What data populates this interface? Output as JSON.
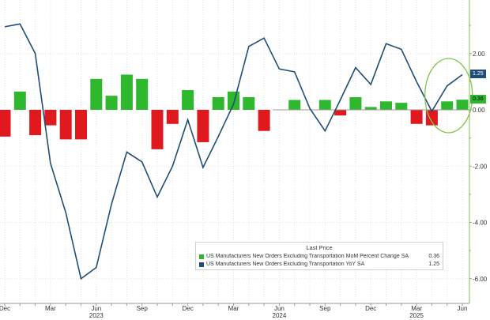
{
  "chart_data": {
    "type": "bar+line",
    "y_axis": {
      "position": "right",
      "ticks": [
        "2.00",
        "0.00",
        "-2.00",
        "-4.00",
        "-6.00"
      ],
      "tick_values": [
        2,
        0,
        -2,
        -4,
        -6
      ],
      "range": [
        -6.4,
        3.9
      ]
    },
    "x_axis": {
      "month_labels": [
        "Dec",
        "Mar",
        "Jun",
        "Sep",
        "Dec",
        "Mar",
        "Jun",
        "Sep",
        "Dec",
        "Mar",
        "Jun"
      ],
      "month_label_indices": [
        0,
        3,
        6,
        9,
        12,
        15,
        18,
        21,
        24,
        27,
        30
      ],
      "year_labels": [
        "2023",
        "2024",
        "2025"
      ],
      "year_label_indices": [
        6,
        18,
        27
      ]
    },
    "categories": [
      "Dec 2022",
      "Jan 2023",
      "Feb 2023",
      "Mar 2023",
      "Apr 2023",
      "May 2023",
      "Jun 2023",
      "Jul 2023",
      "Aug 2023",
      "Sep 2023",
      "Oct 2023",
      "Nov 2023",
      "Dec 2023",
      "Jan 2024",
      "Feb 2024",
      "Mar 2024",
      "Apr 2024",
      "May 2024",
      "Jun 2024",
      "Jul 2024",
      "Aug 2024",
      "Sep 2024",
      "Oct 2024",
      "Nov 2024",
      "Dec 2024",
      "Jan 2025",
      "Feb 2025",
      "Mar 2025",
      "Apr 2025",
      "May 2025",
      "Jun 2025"
    ],
    "series": [
      {
        "name": "US Manufacturers New Orders Excluding Transportation MoM Percent Change SA",
        "kind": "bar",
        "positive_color": "#2db82d",
        "negative_color": "#e0191e",
        "values": [
          -0.95,
          0.65,
          -0.9,
          -0.55,
          -1.05,
          -1.05,
          1.1,
          0.5,
          1.25,
          1.1,
          -1.4,
          -0.5,
          0.7,
          -1.15,
          0.45,
          0.65,
          0.45,
          -0.75,
          0.0,
          0.35,
          0.0,
          0.35,
          -0.2,
          0.45,
          0.1,
          0.3,
          0.25,
          -0.5,
          -0.55,
          0.3,
          0.36
        ],
        "last_price": "0.36"
      },
      {
        "name": "US Manufacturers New Orders Excluding Transportation YoY SA",
        "kind": "line",
        "color": "#1f4e79",
        "values": [
          2.95,
          3.05,
          2.0,
          -1.9,
          -3.65,
          -6.0,
          -5.6,
          -3.35,
          -1.5,
          -1.85,
          -3.1,
          -2.0,
          -0.35,
          -2.05,
          -0.95,
          0.2,
          2.25,
          2.55,
          1.45,
          1.35,
          0.05,
          -0.75,
          0.35,
          1.5,
          0.9,
          2.35,
          2.15,
          1.0,
          -0.05,
          0.85,
          1.25
        ],
        "last_price": "1.25"
      }
    ],
    "legend": {
      "title": "Last Price",
      "placement": "bottom-right"
    },
    "annotation": {
      "type": "ellipse",
      "color": "#86c34b",
      "around": "last three months (Apr–Jun 2025)"
    }
  }
}
